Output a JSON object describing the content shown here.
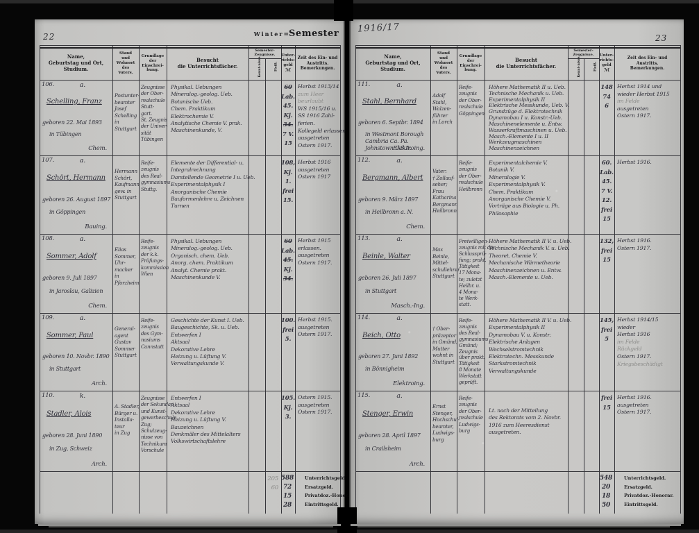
{
  "colors": {
    "paper": "#cac9c7",
    "ink": "#30303a",
    "print": "#1d1d1f"
  },
  "book": {
    "title_small": "Winter",
    "title_eq": "=",
    "title_big": "Semester",
    "year": "1916/17",
    "left_page_number": "22",
    "right_page_number": "23"
  },
  "column_headers": {
    "name_lines": [
      "Name,",
      "Geburtstag und Ort,",
      "Studium."
    ],
    "stand_lines": [
      "Stand",
      "und",
      "Wohnort",
      "des",
      "Vaters."
    ],
    "grundlage_lines": [
      "Grundlage",
      "der",
      "Einschrei-",
      "bung."
    ],
    "besucht_lines": [
      "Besucht",
      "die Unterrichtsfächer."
    ],
    "zeugnisse_lines": [
      "Semester-",
      "Zeugnisse."
    ],
    "kenntnisse": "Kennt-nisse.",
    "fleiss": "Fleiß.",
    "geld_lines": [
      "Unter-",
      "richts-",
      "geld",
      "ℳ"
    ],
    "zeit_lines": [
      "Zeit des Ein- und",
      "Austritts.",
      "Bemerkungen."
    ]
  },
  "totals_labels": [
    "Unterrichtsgeld.",
    "Ersatzgeld.",
    "Privatdoz.-Honorar.",
    "Eintrittsgeld."
  ],
  "pages": [
    {
      "number": "22",
      "entries": [
        {
          "no": "106.",
          "mark": "a.",
          "name": "Schelling, Franz",
          "born": "geboren 22. Mai 1893",
          "place": [
            "in Tübingen"
          ],
          "study": "Chem.",
          "stand": [
            "Postunter-",
            "beamter",
            "Josef",
            "Schelling",
            "in",
            "Stuttgart"
          ],
          "grundlage": [
            "Zeugnisse",
            "der Ober-",
            "realschule",
            "Stutt-",
            "gart.",
            "St. Zeugnis",
            "der Univer-",
            "sität",
            "Tübingen"
          ],
          "subjects": [
            "Physikal. Uebungen",
            "Mineralog.-geolog. Ueb.",
            "Botanische Ueb.",
            "Chem. Praktikum",
            "Elektrochemie V.",
            "Analytische Chemie V. prak.",
            "Maschinenkunde, V."
          ],
          "fees": [
            "~60",
            "Lab.",
            "45.",
            "Kj.",
            "~34.",
            "7 V.",
            "15"
          ],
          "remarks": [
            "Herbst 1913/14",
            "^zum Heer",
            "^beurlaubt",
            "WS 1915/16 u.",
            "SS 1916 Zahl-",
            "ferien.",
            "Kollegeld erlassen",
            "ausgetreten",
            "Ostern 1917."
          ]
        },
        {
          "no": "107.",
          "mark": "a.",
          "name": "Schört, Hermann",
          "born": "geboren 26. August 1897",
          "place": [
            "in Göppingen"
          ],
          "study": "Bauing.",
          "stand": [
            "Hermann",
            "Schört,",
            "Kaufmann",
            "gew. in",
            "Stuttgart"
          ],
          "grundlage": [
            "Reife-",
            "zeugnis",
            "des Real-",
            "gymnasiums",
            "Stuttg."
          ],
          "subjects": [
            "Elemente der Differential- u.",
            "Integralrechnung",
            "Darstellende Geometrie I u. Ueb.",
            "Experimentalphysik I",
            "Anorganische Chemie",
            "Bauformenlehre u. Zeichnen",
            "Turnen"
          ],
          "fees": [
            "108,",
            "Kj.",
            "1.",
            "frei",
            "15."
          ],
          "remarks": [
            "Herbst 1916",
            "ausgetreten",
            "Ostern 1917"
          ]
        },
        {
          "no": "108.",
          "mark": "a.",
          "name": "Sommer, Adolf",
          "born": "geboren 9. Juli 1897",
          "place": [
            "in Jaroslau, Galizien"
          ],
          "study": "Chem.",
          "stand": [
            "Elias",
            "Sommer,",
            "Uhr-",
            "macher",
            "in",
            "Pforzheim"
          ],
          "grundlage": [
            "Reife-",
            "zeugnis",
            "der k.k.",
            "Prüfungs-",
            "kommission",
            "Wien"
          ],
          "subjects": [
            "Physikal. Uebungen",
            "Mineralog.-geolog. Ueb.",
            "Organisch. chem. Ueb.",
            "Anorg. chem. Praktikum",
            "Analyt. Chemie prakt.",
            "Maschinenkunde V."
          ],
          "fees": [
            "~60",
            "Lab.",
            "~45.",
            "Kj.",
            "~34."
          ],
          "remarks": [
            "Herbst 1915",
            "erlassen.",
            "ausgetreten",
            "Ostern 1917."
          ]
        },
        {
          "no": "109.",
          "mark": "a.",
          "name": "Sommer, Paul",
          "born": "geboren 10. Novbr. 1890",
          "place": [
            "in Stuttgart"
          ],
          "study": "Arch.",
          "stand": [
            "General-",
            "agent",
            "Gustav",
            "Sommer",
            "Stuttgart"
          ],
          "grundlage": [
            "Reife-",
            "zeugnis",
            "des Gym-",
            "nasiums",
            "Cannstatt"
          ],
          "subjects": [
            "Geschichte der Kunst I. Ueb.",
            "Baugeschichte, Sk. u. Ueb.",
            "Entwerfen I",
            "Aktsaal",
            "Dekorative Lehre",
            "Heizung u. Lüftung V.",
            "Verwaltungskunde V."
          ],
          "fees": [
            "100.",
            "frei",
            "5."
          ],
          "remarks": [
            "Herbst 1915.",
            "ausgetreten",
            "Ostern 1917."
          ]
        },
        {
          "no": "110.",
          "mark": "k.",
          "name": "Stadler, Alois",
          "born": "geboren 28. Juni 1890",
          "place": [
            "in Zug, Schweiz"
          ],
          "study": "Arch.",
          "stand": [
            "A. Stadler,",
            "Bürger u.",
            "Installa-",
            "teur",
            "in Zug"
          ],
          "grundlage": [
            "Zeugnisse",
            "der Sekundar-",
            "und Kunst-",
            "gewerbeschule",
            "Zug;",
            "Schulzeug-",
            "nisse von",
            "Technikum",
            "Vorschule"
          ],
          "subjects": [
            "Entwerfen I",
            "Aktsaal",
            "Dekorative Lehre",
            "Heizung u. Lüftung V.",
            "Bauzeichnen",
            "Denkmäler des Mittelalters",
            "Volkswirtschaftslehre"
          ],
          "fees": [
            "105.",
            "Kj.",
            "3."
          ],
          "remarks": [
            "Ostern 1915.",
            "ausgetreten",
            "Ostern 1917."
          ]
        }
      ],
      "totals": {
        "pre": [
          "205",
          "60"
        ],
        "amounts": [
          "588",
          "72",
          "15",
          "28"
        ]
      }
    },
    {
      "number": "23",
      "entries": [
        {
          "no": "111.",
          "mark": "a.",
          "name": "Stahl, Bernhard",
          "born": "geboren 6. Septbr. 1894",
          "place": [
            "in Westmont Borough",
            "Cambria Ca. Pa.",
            "Johnstown U.S.A."
          ],
          "study": "Elektroing.",
          "stand": [
            "Adolf",
            "Stahl,",
            "Walzen-",
            "führer",
            "in Lorch"
          ],
          "grundlage": [
            "Reife-",
            "zeugnis",
            "der Ober-",
            "realschule",
            "Göppingen"
          ],
          "subjects": [
            "Höhere Mathematik II u. Ueb.",
            "Technische Mechanik u. Ueb.",
            "Experimentalphysik II",
            "Elektrische Messkunde, Ueb. V.",
            "Grundzüge d. Elektrotechnik",
            "Dynamobau I u. Konstr.-Ueb.",
            "Maschinenelemente u. Entw.",
            "Wasserkraftmaschinen u. Ueb.",
            "Masch.-Elemente I u. II",
            "Werkzeugmaschinen",
            "Maschinenzeichnen"
          ],
          "fees": [
            "148",
            "74",
            "6"
          ],
          "remarks": [
            "Herbst 1914 und",
            "wieder Herbst 1915",
            "^im Felde",
            "ausgetreten",
            "Ostern 1917."
          ]
        },
        {
          "no": "112.",
          "mark": "a.",
          "name": "Bergmann, Albert",
          "born": "geboren 9. März 1897",
          "place": [
            "in Heilbronn a. N."
          ],
          "study": "Chem.",
          "stand": [
            "Vater:",
            "† Zollauf-",
            "seher;",
            "Frau",
            "Katharina",
            "Bergmann",
            "Heilbronn"
          ],
          "grundlage": [
            "Reife-",
            "zeugnis",
            "der Ober-",
            "realschule",
            "Heilbronn"
          ],
          "subjects": [
            "Experimentalchemie V.",
            "Botanik V.",
            "Mineralogie V.",
            "Experimentalphysik V.",
            "Chem. Praktikum",
            "Anorganische Chemie V.",
            "Vorträge aus Biologie u. Ph.",
            "Philosophie"
          ],
          "fees": [
            "60.",
            "Lab.",
            "45.",
            "7 V.",
            "12.",
            "frei",
            "15"
          ],
          "remarks": [
            "Herbst 1916."
          ]
        },
        {
          "no": "113.",
          "mark": "a.",
          "name": "Beinle, Walter",
          "born": "geboren 26. Juli 1897",
          "place": [
            "in Stuttgart"
          ],
          "study": "Masch.-Ing.",
          "stand": [
            "Max",
            "Beinle,",
            "Mittel-",
            "schullehrer",
            "Stuttgart"
          ],
          "grundlage": [
            "Freiwilligen-",
            "zeugnis mit der",
            "Schlussprü-",
            "fung; prakt.",
            "Tätigkeit",
            "17 Mona-",
            "te; zuletzt",
            "Heilbr. u.",
            "4 Mona-",
            "te Werk-",
            "statt."
          ],
          "subjects": [
            "Höhere Mathematik II V. u. Ueb.",
            "Technische Mechanik V. u. Ueb.",
            "Theoret. Chemie V.",
            "Mechanische Wärmetheorie",
            "Maschinenzeichnen u. Entw.",
            "Masch.-Elemente u. Ueb."
          ],
          "fees": [
            "132,",
            "frei",
            "15"
          ],
          "remarks": [
            "Herbst 1916.",
            "Ostern 1917."
          ]
        },
        {
          "no": "114.",
          "mark": "a.",
          "name": "Beich, Otto",
          "born": "geboren 27. Juni 1892",
          "place": [
            "in Bönnigheim"
          ],
          "study": "Elektroing.",
          "stand": [
            "† Ober-",
            "präzeptor",
            "in Gmünd;",
            "Mutter",
            "wohnt in",
            "Stuttgart"
          ],
          "grundlage": [
            "Reife-",
            "zeugnis",
            "des Real-",
            "gymnasiums",
            "Gmünd;",
            "Zeugnis",
            "über prakt.",
            "Tätigkeit",
            "8 Monate",
            "Werkstatt",
            "geprüft."
          ],
          "subjects": [
            "Höhere Mathematik II V. u. Ueb.",
            "Experimentalphysik II",
            "Dynamobau V. u. Konstr.",
            "Elektrische Anlagen",
            "Wechselstromtechnik",
            "Elektrotechn. Messkunde",
            "Starkstromtechnik",
            "Verwaltungskunde"
          ],
          "fees": [
            "145,",
            "frei",
            "5"
          ],
          "remarks": [
            "Herbst 1914/15",
            "wieder",
            "Herbst 1916",
            "^im Felde",
            "^Rückgeld",
            "Ostern 1917.",
            "^Kriegsbeschädigt"
          ]
        },
        {
          "no": "115.",
          "mark": "a.",
          "name": "Stenger, Erwin",
          "born": "geboren 28. April 1897",
          "place": [
            "in Crailsheim"
          ],
          "study": "Arch.",
          "stand": [
            "Ernst",
            "Stenger,",
            "Hochschul-",
            "beamter,",
            "Ludwigs-",
            "burg"
          ],
          "grundlage": [
            "Reife-",
            "zeugnis",
            "der Ober-",
            "realschule",
            "Ludwigs-",
            "burg"
          ],
          "subjects": [
            "Lt. nach der Mitteilung",
            "des Rektorats vom 2. Novbr.",
            "1916 zum Heeresdienst",
            "ausgetreten."
          ],
          "fees": [
            "frei",
            "15"
          ],
          "remarks": [
            "Herbst 1916.",
            "ausgetreten",
            "Ostern 1917."
          ]
        }
      ],
      "totals": {
        "pre": [],
        "amounts": [
          "548",
          "20",
          "18",
          "50"
        ]
      }
    }
  ]
}
